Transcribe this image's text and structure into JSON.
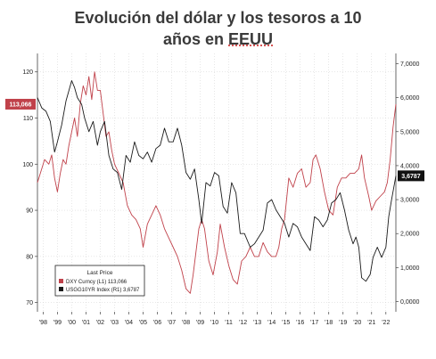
{
  "title_line1": "Evolución del dólar y los tesoros a 10",
  "title_line2_pre": "años en ",
  "title_line2_u": "EEUU",
  "chart_data": {
    "type": "line",
    "title": "Evolución del dólar y los tesoros a 10 años en EEUU",
    "x_range": [
      1997.6,
      2022.7
    ],
    "left_axis": {
      "ticks": [
        70,
        80,
        90,
        100,
        110,
        120
      ],
      "range": [
        68,
        124
      ]
    },
    "right_axis": {
      "ticks": [
        "0,0000",
        "1,0000",
        "2,0000",
        "3,0000",
        "4,0000",
        "5,0000",
        "6,0000",
        "7,0000"
      ],
      "values": [
        0,
        1,
        2,
        3,
        4,
        5,
        6,
        7
      ],
      "range": [
        -0.3,
        7.3
      ]
    },
    "x_ticks": [
      {
        "label": "'98",
        "x": 1998
      },
      {
        "label": "'99",
        "x": 1999
      },
      {
        "label": "'00",
        "x": 2000
      },
      {
        "label": "'01",
        "x": 2001
      },
      {
        "label": "'02",
        "x": 2002
      },
      {
        "label": "'03",
        "x": 2003
      },
      {
        "label": "'04",
        "x": 2004
      },
      {
        "label": "'05",
        "x": 2005
      },
      {
        "label": "'06",
        "x": 2006
      },
      {
        "label": "'07",
        "x": 2007
      },
      {
        "label": "'08",
        "x": 2008
      },
      {
        "label": "'09",
        "x": 2009
      },
      {
        "label": "'10",
        "x": 2010
      },
      {
        "label": "'11",
        "x": 2011
      },
      {
        "label": "'12",
        "x": 2012
      },
      {
        "label": "'13",
        "x": 2013
      },
      {
        "label": "'14",
        "x": 2014
      },
      {
        "label": "'15",
        "x": 2015
      },
      {
        "label": "'16",
        "x": 2016
      },
      {
        "label": "'17",
        "x": 2017
      },
      {
        "label": "'18",
        "x": 2018
      },
      {
        "label": "'19",
        "x": 2019
      },
      {
        "label": "'20",
        "x": 2020
      },
      {
        "label": "'21",
        "x": 2021
      },
      {
        "label": "'22",
        "x": 2022
      }
    ],
    "legend": {
      "title": "Last Price",
      "placement": "bottom-left",
      "entries": [
        "DXY Curncy  (L1)    113,066",
        "USGG10YR Index  (R1)  3,6787"
      ]
    },
    "last_value_labels": {
      "left": "113,066",
      "right": "3,6787"
    },
    "series": [
      {
        "name": "DXY Curncy",
        "axis": "left",
        "color": "#c0414a",
        "x": [
          1997.6,
          1997.9,
          1998.1,
          1998.4,
          1998.6,
          1998.8,
          1999.0,
          1999.2,
          1999.4,
          1999.6,
          1999.8,
          2000.0,
          2000.2,
          2000.4,
          2000.6,
          2000.8,
          2001.0,
          2001.2,
          2001.4,
          2001.6,
          2001.8,
          2002.0,
          2002.2,
          2002.4,
          2002.6,
          2002.8,
          2003.0,
          2003.3,
          2003.6,
          2003.9,
          2004.2,
          2004.5,
          2004.8,
          2005.0,
          2005.3,
          2005.6,
          2005.9,
          2006.2,
          2006.5,
          2006.8,
          2007.1,
          2007.4,
          2007.7,
          2008.0,
          2008.3,
          2008.5,
          2008.7,
          2008.9,
          2009.1,
          2009.3,
          2009.6,
          2009.9,
          2010.2,
          2010.4,
          2010.7,
          2011.0,
          2011.3,
          2011.6,
          2011.9,
          2012.2,
          2012.5,
          2012.8,
          2013.1,
          2013.4,
          2013.7,
          2014.0,
          2014.3,
          2014.5,
          2014.7,
          2014.9,
          2015.2,
          2015.5,
          2015.8,
          2016.1,
          2016.4,
          2016.7,
          2016.9,
          2017.1,
          2017.4,
          2017.7,
          2018.0,
          2018.3,
          2018.6,
          2018.9,
          2019.2,
          2019.5,
          2019.8,
          2020.1,
          2020.3,
          2020.5,
          2020.8,
          2021.0,
          2021.3,
          2021.6,
          2021.9,
          2022.1,
          2022.3,
          2022.5,
          2022.7
        ],
        "y": [
          96,
          99,
          101,
          100,
          102,
          97,
          94,
          98,
          101,
          100,
          104,
          107,
          110,
          106,
          113,
          117,
          115,
          119,
          114,
          120,
          116,
          116,
          111,
          106,
          107,
          103,
          100,
          98,
          96,
          91,
          89,
          88,
          86,
          82,
          87,
          89,
          91,
          89,
          86,
          84,
          82,
          80,
          77,
          73,
          72,
          76,
          81,
          86,
          88,
          86,
          79,
          76,
          81,
          87,
          82,
          78,
          75,
          74,
          79,
          80,
          82,
          80,
          80,
          83,
          81,
          80,
          80,
          82,
          86,
          88,
          97,
          95,
          98,
          99,
          95,
          96,
          101,
          102,
          99,
          94,
          90,
          89,
          95,
          97,
          97,
          98,
          98,
          99,
          102,
          97,
          93,
          90,
          92,
          93,
          94,
          96,
          101,
          108,
          113
        ]
      },
      {
        "name": "USGG10YR Index",
        "axis": "right",
        "color": "#1a1a1a",
        "x": [
          1997.6,
          1997.9,
          1998.2,
          1998.5,
          1998.8,
          1999.0,
          1999.3,
          1999.6,
          1999.8,
          2000.0,
          2000.2,
          2000.4,
          2000.7,
          2000.9,
          2001.2,
          2001.5,
          2001.8,
          2002.0,
          2002.3,
          2002.6,
          2002.9,
          2003.2,
          2003.5,
          2003.8,
          2004.1,
          2004.4,
          2004.7,
          2005.0,
          2005.3,
          2005.6,
          2005.9,
          2006.2,
          2006.5,
          2006.8,
          2007.1,
          2007.4,
          2007.7,
          2008.0,
          2008.3,
          2008.6,
          2008.9,
          2009.1,
          2009.4,
          2009.7,
          2010.0,
          2010.3,
          2010.6,
          2010.9,
          2011.2,
          2011.5,
          2011.8,
          2012.1,
          2012.5,
          2012.8,
          2013.1,
          2013.4,
          2013.7,
          2014.0,
          2014.3,
          2014.6,
          2014.9,
          2015.2,
          2015.5,
          2015.8,
          2016.1,
          2016.4,
          2016.7,
          2017.0,
          2017.3,
          2017.6,
          2017.9,
          2018.2,
          2018.5,
          2018.8,
          2019.1,
          2019.4,
          2019.7,
          2019.9,
          2020.1,
          2020.3,
          2020.6,
          2020.9,
          2021.1,
          2021.4,
          2021.7,
          2022.0,
          2022.2,
          2022.4,
          2022.7
        ],
        "y": [
          6.0,
          5.7,
          5.6,
          5.3,
          4.4,
          4.7,
          5.2,
          5.9,
          6.2,
          6.5,
          6.3,
          6.0,
          5.8,
          5.4,
          5.0,
          5.3,
          4.6,
          5.0,
          5.3,
          4.3,
          3.9,
          3.8,
          3.3,
          4.3,
          4.1,
          4.7,
          4.3,
          4.2,
          4.4,
          4.1,
          4.5,
          4.6,
          5.1,
          4.7,
          4.7,
          5.1,
          4.6,
          3.8,
          3.6,
          3.9,
          3.0,
          2.3,
          3.5,
          3.4,
          3.8,
          3.7,
          2.8,
          2.6,
          3.5,
          3.2,
          2.0,
          2.0,
          1.6,
          1.7,
          1.9,
          2.1,
          2.9,
          3.0,
          2.7,
          2.5,
          2.3,
          1.9,
          2.3,
          2.2,
          1.9,
          1.7,
          1.5,
          2.5,
          2.4,
          2.2,
          2.4,
          2.9,
          3.0,
          3.2,
          2.7,
          2.1,
          1.7,
          1.9,
          1.6,
          0.7,
          0.6,
          0.8,
          1.3,
          1.6,
          1.3,
          1.6,
          2.5,
          3.0,
          3.7
        ]
      }
    ]
  }
}
